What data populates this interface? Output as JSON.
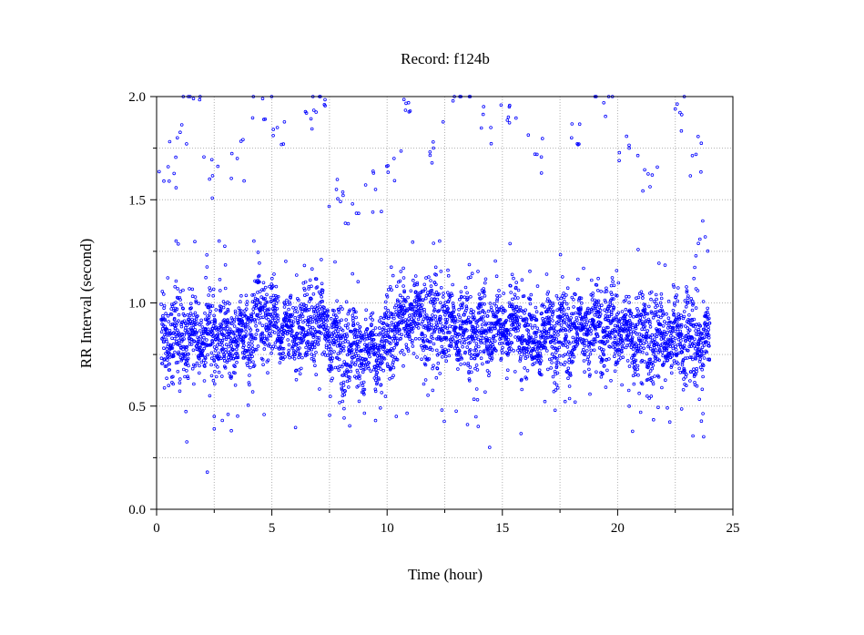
{
  "chart_data": {
    "type": "scatter",
    "title": "Record:  f124b",
    "xlabel": "Time (hour)",
    "ylabel": "RR Interval (second)",
    "xlim": [
      0,
      25
    ],
    "ylim": [
      0,
      2.0
    ],
    "xticks": [
      0,
      5,
      10,
      15,
      20,
      25
    ],
    "xtick_labels": [
      "0",
      "5",
      "10",
      "15",
      "20",
      "25"
    ],
    "yticks": [
      0,
      0.5,
      1.0,
      1.5,
      2.0
    ],
    "ytick_labels": [
      "0.0",
      "0.5",
      "1.0",
      "1.5",
      "2.0"
    ],
    "grid": true,
    "grid_style": "dotted",
    "marker": "open-circle",
    "series_color": "#0000ff",
    "series": [
      {
        "description": "RR intervals per beat over ~24 hours",
        "time_range": [
          0.2,
          24.0
        ],
        "main_band": [
          {
            "x": 0.2,
            "y": 0.82
          },
          {
            "x": 1.0,
            "y": 0.85
          },
          {
            "x": 2.0,
            "y": 0.83
          },
          {
            "x": 3.0,
            "y": 0.82
          },
          {
            "x": 4.0,
            "y": 0.86
          },
          {
            "x": 4.5,
            "y": 0.95
          },
          {
            "x": 5.0,
            "y": 0.9
          },
          {
            "x": 6.0,
            "y": 0.86
          },
          {
            "x": 6.8,
            "y": 0.95
          },
          {
            "x": 7.2,
            "y": 0.88
          },
          {
            "x": 8.0,
            "y": 0.78
          },
          {
            "x": 9.0,
            "y": 0.76
          },
          {
            "x": 9.8,
            "y": 0.78
          },
          {
            "x": 10.5,
            "y": 0.92
          },
          {
            "x": 11.0,
            "y": 0.95
          },
          {
            "x": 12.0,
            "y": 0.9
          },
          {
            "x": 13.0,
            "y": 0.88
          },
          {
            "x": 14.0,
            "y": 0.86
          },
          {
            "x": 15.0,
            "y": 0.88
          },
          {
            "x": 15.5,
            "y": 0.92
          },
          {
            "x": 16.0,
            "y": 0.85
          },
          {
            "x": 17.0,
            "y": 0.84
          },
          {
            "x": 18.0,
            "y": 0.86
          },
          {
            "x": 19.0,
            "y": 0.88
          },
          {
            "x": 20.0,
            "y": 0.88
          },
          {
            "x": 21.0,
            "y": 0.83
          },
          {
            "x": 22.0,
            "y": 0.82
          },
          {
            "x": 23.0,
            "y": 0.84
          },
          {
            "x": 24.0,
            "y": 0.8
          }
        ],
        "upper_cluster": [
          {
            "x": 0.5,
            "y": 1.66
          },
          {
            "x": 0.9,
            "y": 1.8
          },
          {
            "x": 1.6,
            "y": 1.99
          },
          {
            "x": 2.3,
            "y": 1.6
          },
          {
            "x": 3.5,
            "y": 1.7
          },
          {
            "x": 4.6,
            "y": 1.99
          },
          {
            "x": 5.5,
            "y": 1.77
          },
          {
            "x": 6.5,
            "y": 1.92
          },
          {
            "x": 7.1,
            "y": 2.0
          },
          {
            "x": 7.8,
            "y": 1.55
          },
          {
            "x": 8.5,
            "y": 1.48
          },
          {
            "x": 9.5,
            "y": 1.55
          },
          {
            "x": 10.3,
            "y": 1.7
          },
          {
            "x": 11.0,
            "y": 1.93
          },
          {
            "x": 12.0,
            "y": 1.78
          },
          {
            "x": 13.2,
            "y": 2.0
          },
          {
            "x": 14.5,
            "y": 1.85
          },
          {
            "x": 15.3,
            "y": 1.95
          },
          {
            "x": 16.5,
            "y": 1.72
          },
          {
            "x": 18.0,
            "y": 1.8
          },
          {
            "x": 19.4,
            "y": 1.97
          },
          {
            "x": 20.5,
            "y": 1.75
          },
          {
            "x": 21.5,
            "y": 1.62
          },
          {
            "x": 22.5,
            "y": 1.94
          },
          {
            "x": 23.4,
            "y": 1.72
          },
          {
            "x": 23.8,
            "y": 1.32
          }
        ],
        "outliers": [
          {
            "x": 2.2,
            "y": 0.18
          },
          {
            "x": 2.5,
            "y": 0.45
          },
          {
            "x": 2.5,
            "y": 0.39
          },
          {
            "x": 3.1,
            "y": 0.46
          },
          {
            "x": 9.5,
            "y": 0.43
          },
          {
            "x": 10.4,
            "y": 0.45
          },
          {
            "x": 20.5,
            "y": 0.5
          },
          {
            "x": 21.0,
            "y": 0.47
          }
        ]
      }
    ]
  }
}
